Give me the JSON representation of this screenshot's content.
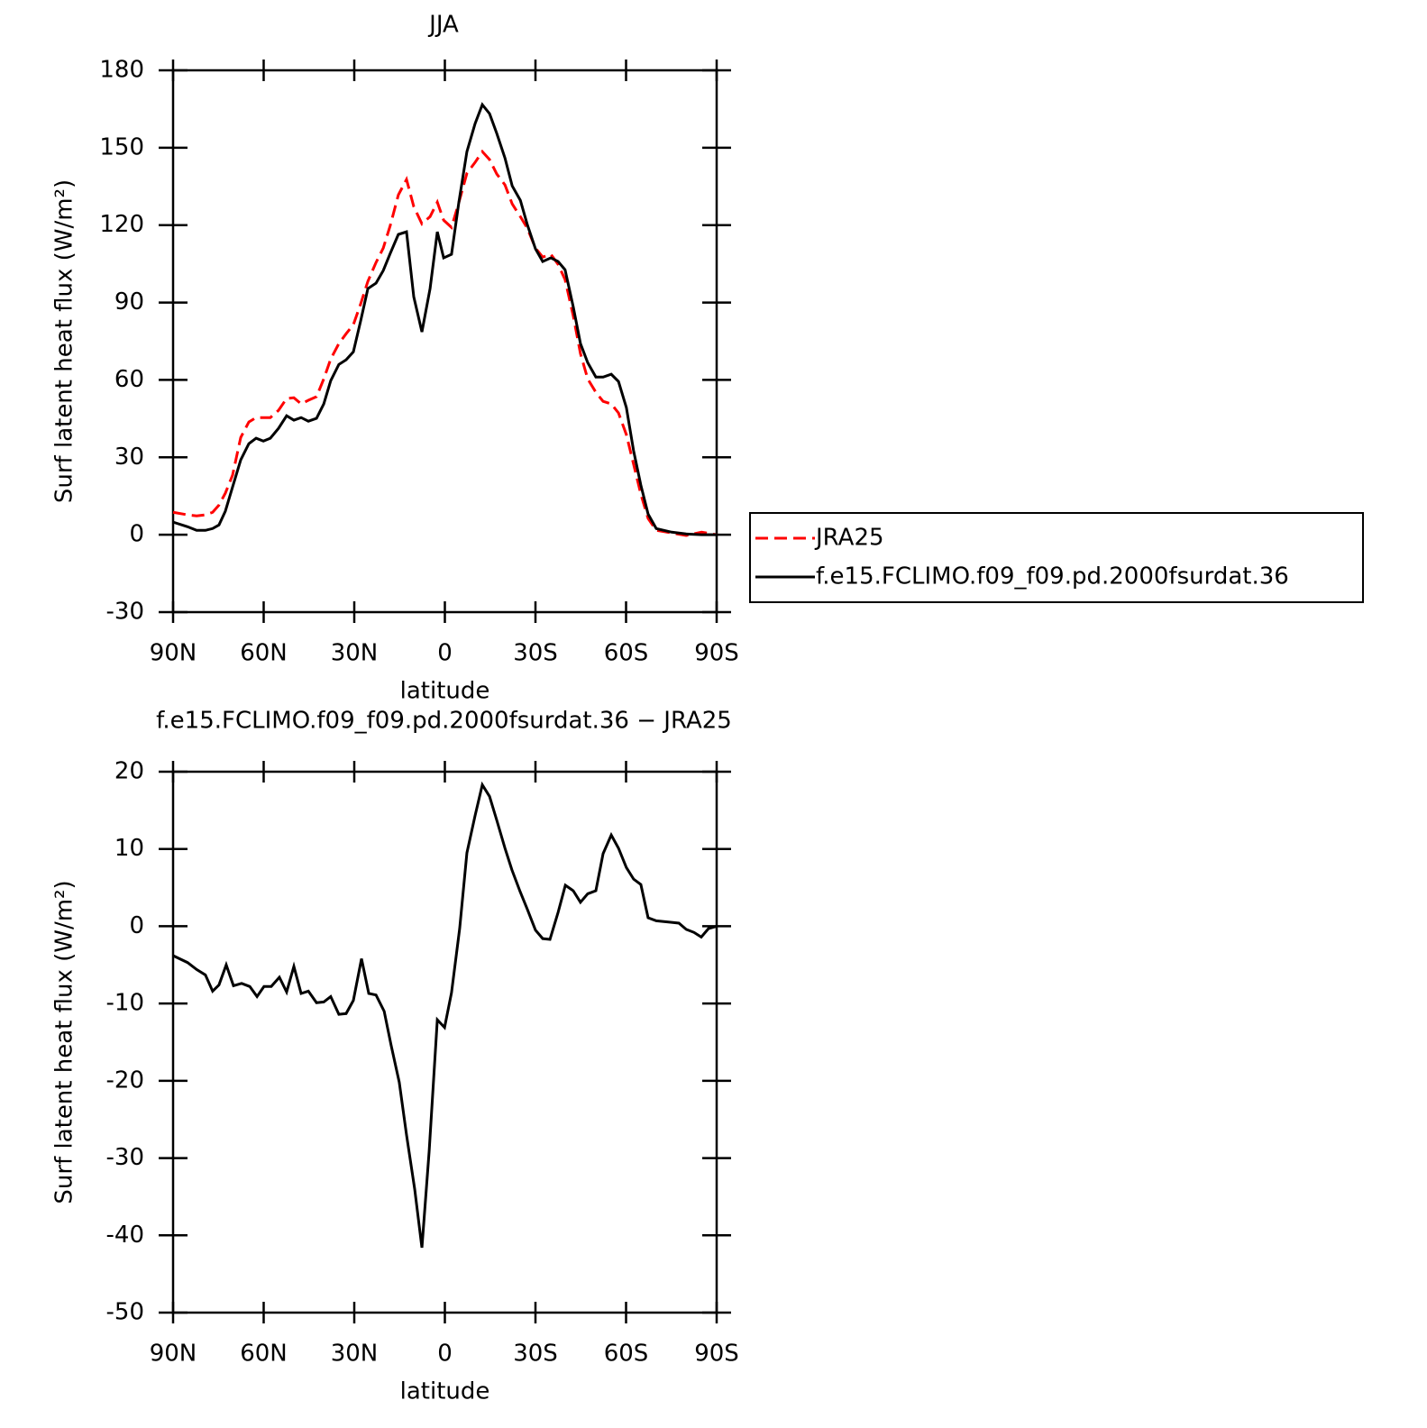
{
  "chart_data": [
    {
      "type": "line",
      "title": "JJA",
      "xlabel": "latitude",
      "ylabel": "Surf latent heat flux (W/m²)",
      "xlim": [
        90,
        -90
      ],
      "xticks": [
        {
          "value": 90,
          "label": "90N"
        },
        {
          "value": 60,
          "label": "60N"
        },
        {
          "value": 30,
          "label": "30N"
        },
        0,
        {
          "value": -30,
          "label": "30S"
        },
        {
          "value": -60,
          "label": "60S"
        },
        {
          "value": -90,
          "label": "90S"
        }
      ],
      "ylim": [
        -30,
        180
      ],
      "yticks": [
        -30,
        0,
        30,
        60,
        90,
        120,
        150,
        180
      ],
      "legend": "right",
      "x": [
        90,
        85.2,
        82.2,
        79.3,
        76.9,
        74.8,
        72.7,
        70.3,
        67.6,
        64.9,
        62.5,
        60.1,
        57.8,
        55.1,
        52.4,
        50,
        47.6,
        45.2,
        42.5,
        40.1,
        37.8,
        35.1,
        32.7,
        30.3,
        27.9,
        25.5,
        22.8,
        20.4,
        18.1,
        15.4,
        12.7,
        10.3,
        7.6,
        4.9,
        2.5,
        0.4,
        -2.2,
        -4.6,
        -7.3,
        -10,
        -12.4,
        -14.8,
        -17.2,
        -19.9,
        -22.3,
        -25,
        -27.3,
        -30,
        -32.4,
        -35.1,
        -37.5,
        -39.8,
        -42.5,
        -44.9,
        -47.3,
        -50,
        -52.4,
        -55.1,
        -57.5,
        -60.1,
        -62.5,
        -64.9,
        -67.3,
        -70,
        -75.1,
        -79.9,
        -85,
        -90
      ],
      "series": [
        {
          "name": "JRA25",
          "color": "#ff0000",
          "dashed": true,
          "values": [
            8.7,
            7.7,
            7.3,
            7.7,
            8.7,
            11.5,
            16.1,
            23.1,
            37.7,
            43.7,
            45.4,
            45.4,
            45.4,
            48.2,
            52.8,
            53.1,
            50.7,
            52.1,
            53.5,
            60.4,
            68.1,
            74.1,
            77.9,
            81.4,
            89.4,
            98.2,
            105.5,
            111.1,
            119.8,
            131.7,
            137.7,
            127.2,
            120.5,
            123.3,
            128.9,
            121.9,
            119.1,
            128.6,
            140.1,
            144.3,
            148.5,
            145.4,
            139.8,
            135.6,
            128.2,
            123.3,
            118.8,
            111.1,
            107.6,
            108.7,
            104.8,
            98.9,
            84.9,
            70.2,
            60.4,
            55.2,
            51.7,
            50.7,
            47.2,
            38.8,
            27.3,
            15.7,
            6.3,
            1.7,
            0.7,
            -0.3,
            1.0,
            0
          ]
        },
        {
          "name": "f.e15.FCLIMO.f09_f09.pd.2000fsurdat.36",
          "color": "#000000",
          "dashed": false,
          "values": [
            4.9,
            3.1,
            1.7,
            1.7,
            2.4,
            3.8,
            9.1,
            18.5,
            29,
            35.3,
            37.4,
            36.3,
            37.4,
            41.2,
            46.1,
            44.4,
            45.4,
            44,
            45.1,
            50.7,
            59.7,
            66,
            67.8,
            70.9,
            82.8,
            95.4,
            97.5,
            102.4,
            109,
            116.4,
            117.4,
            92.2,
            78.6,
            95.4,
            117.4,
            107.3,
            108.7,
            128.6,
            148.5,
            159.3,
            166.7,
            163.2,
            155.5,
            146,
            135.2,
            129.6,
            120.2,
            110.8,
            105.9,
            107.3,
            105.9,
            102.7,
            88.4,
            74.1,
            66.7,
            61.1,
            61.1,
            62.2,
            59.4,
            49.3,
            32.5,
            19.2,
            8.0,
            2.4,
            1.0,
            0.3,
            0,
            0
          ]
        }
      ]
    },
    {
      "type": "line",
      "title": "f.e15.FCLIMO.f09_f09.pd.2000fsurdat.36 − JRA25",
      "xlabel": "latitude",
      "ylabel": "Surf latent heat flux (W/m²)",
      "xlim": [
        90,
        -90
      ],
      "xticks": [
        {
          "value": 90,
          "label": "90N"
        },
        {
          "value": 60,
          "label": "60N"
        },
        {
          "value": 30,
          "label": "30N"
        },
        0,
        {
          "value": -30,
          "label": "30S"
        },
        {
          "value": -60,
          "label": "60S"
        },
        {
          "value": -90,
          "label": "90S"
        }
      ],
      "ylim": [
        -50,
        20
      ],
      "yticks": [
        -50,
        -40,
        -30,
        -20,
        -10,
        0,
        10,
        20
      ],
      "x": [
        90,
        85.2,
        82.2,
        79.3,
        76.9,
        74.8,
        72.4,
        70,
        67.3,
        64.6,
        62.2,
        59.9,
        57.5,
        54.8,
        52.4,
        50,
        47.6,
        45.2,
        42.5,
        40.1,
        37.8,
        35.1,
        32.7,
        30.3,
        27.6,
        25.2,
        22.8,
        20.1,
        17.8,
        15.1,
        12.7,
        10,
        7.6,
        5.2,
        2.5,
        0.1,
        -2.2,
        -4.9,
        -7.3,
        -10,
        -12.4,
        -14.8,
        -17.2,
        -19.9,
        -22.2,
        -24.9,
        -27.3,
        -30,
        -32.4,
        -34.8,
        -37.5,
        -39.9,
        -42.5,
        -44.9,
        -47.3,
        -50,
        -52.4,
        -55.1,
        -57.5,
        -60.1,
        -62.5,
        -64.9,
        -67.3,
        -70,
        -75.1,
        -77.5,
        -79.9,
        -82.5,
        -84.9,
        -87.3,
        -90
      ],
      "series": [
        {
          "color": "#000000",
          "dashed": false,
          "values": [
            -3.8,
            -4.7,
            -5.6,
            -6.3,
            -8.4,
            -7.6,
            -5.0,
            -7.7,
            -7.4,
            -7.8,
            -9.1,
            -7.8,
            -7.8,
            -6.6,
            -8.5,
            -5.2,
            -8.7,
            -8.4,
            -9.9,
            -9.8,
            -9.1,
            -11.4,
            -11.3,
            -9.6,
            -4.2,
            -8.7,
            -8.9,
            -11.0,
            -15.4,
            -20.2,
            -27.0,
            -34.0,
            -41.6,
            -29.1,
            -12.1,
            -13.1,
            -8.6,
            -0.3,
            9.5,
            14.3,
            18.3,
            16.8,
            13.7,
            10.1,
            7.3,
            4.5,
            2.2,
            -0.5,
            -1.6,
            -1.7,
            1.8,
            5.3,
            4.6,
            3.1,
            4.2,
            4.6,
            9.4,
            11.8,
            10.1,
            7.6,
            6.1,
            5.4,
            1.1,
            0.7,
            0.5,
            0.4,
            -0.4,
            -0.8,
            -1.4,
            -0.3,
            0
          ]
        }
      ]
    }
  ]
}
